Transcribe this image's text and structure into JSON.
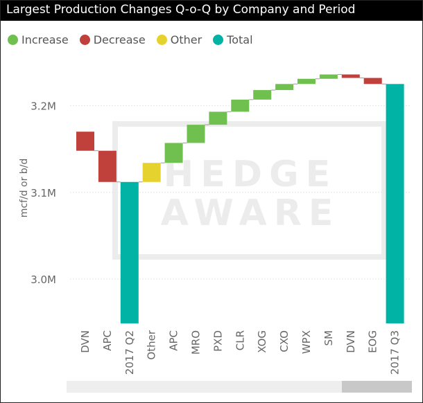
{
  "title": "Largest Production Changes Q-o-Q by Company and Period",
  "legend": [
    {
      "label": "Increase",
      "color": "#70c050"
    },
    {
      "label": "Decrease",
      "color": "#c0413b"
    },
    {
      "label": "Other",
      "color": "#e6d22e"
    },
    {
      "label": "Total",
      "color": "#00b3a5"
    }
  ],
  "watermark": [
    "HEDGE",
    "AWARE"
  ],
  "chart_data": {
    "type": "waterfall",
    "title": "Largest Production Changes Q-o-Q by Company and Period",
    "xlabel": "",
    "ylabel": "mcf/d or b/d",
    "ylim": [
      2.95,
      3.36
    ],
    "yticks": [
      3.0,
      3.1,
      3.2
    ],
    "ytick_labels": [
      "3.0M",
      "3.1M",
      "3.2M"
    ],
    "unit": "M",
    "gridlines": true,
    "legend_position": "top-left",
    "colors": {
      "Increase": "#70c050",
      "Decrease": "#c0413b",
      "Other": "#e6d22e",
      "Total": "#00b3a5"
    },
    "bars": [
      {
        "label": "DVN",
        "kind": "Decrease",
        "start": 3.17,
        "end": 3.148
      },
      {
        "label": "APC",
        "kind": "Decrease",
        "start": 3.148,
        "end": 3.112
      },
      {
        "label": "2017 Q2",
        "kind": "Total",
        "start": 0,
        "end": 3.112
      },
      {
        "label": "Other",
        "kind": "Other",
        "start": 3.112,
        "end": 3.134
      },
      {
        "label": "APC",
        "kind": "Increase",
        "start": 3.134,
        "end": 3.157
      },
      {
        "label": "MRO",
        "kind": "Increase",
        "start": 3.157,
        "end": 3.178
      },
      {
        "label": "PXD",
        "kind": "Increase",
        "start": 3.178,
        "end": 3.193
      },
      {
        "label": "CLR",
        "kind": "Increase",
        "start": 3.193,
        "end": 3.207
      },
      {
        "label": "XOG",
        "kind": "Increase",
        "start": 3.207,
        "end": 3.218
      },
      {
        "label": "CXO",
        "kind": "Increase",
        "start": 3.218,
        "end": 3.225
      },
      {
        "label": "WPX",
        "kind": "Increase",
        "start": 3.225,
        "end": 3.231
      },
      {
        "label": "SM",
        "kind": "Increase",
        "start": 3.231,
        "end": 3.236
      },
      {
        "label": "DVN",
        "kind": "Decrease",
        "start": 3.236,
        "end": 3.232
      },
      {
        "label": "EOG",
        "kind": "Decrease",
        "start": 3.232,
        "end": 3.225
      },
      {
        "label": "2017 Q3",
        "kind": "Total",
        "start": 0,
        "end": 3.225
      }
    ]
  }
}
